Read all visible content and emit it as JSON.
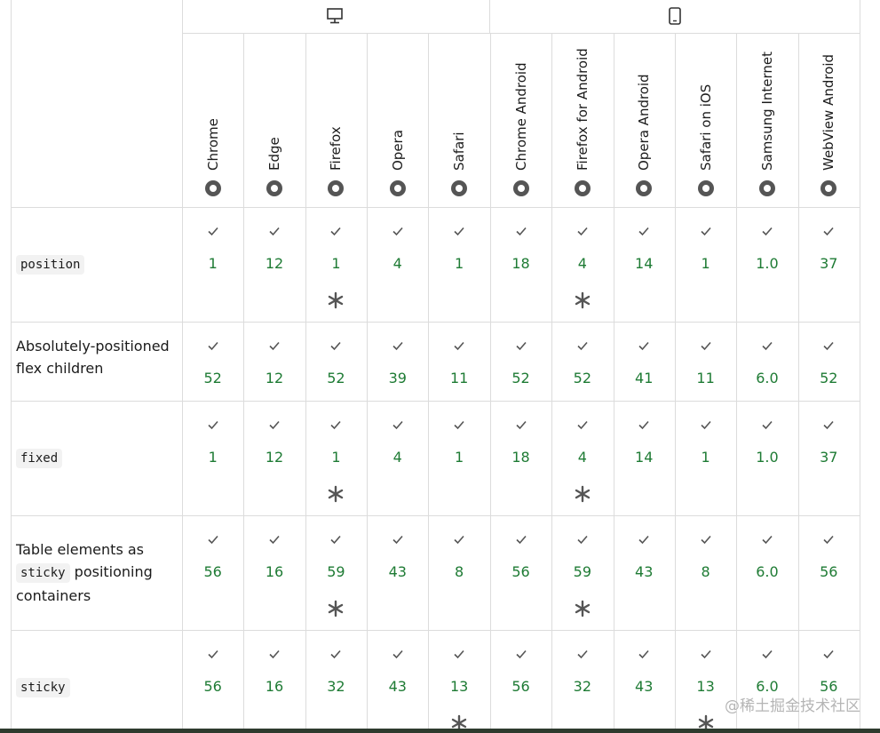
{
  "table": {
    "groups": [
      "desktop",
      "mobile"
    ],
    "browsers": [
      "Chrome",
      "Edge",
      "Firefox",
      "Opera",
      "Safari",
      "Chrome Android",
      "Firefox for Android",
      "Opera Android",
      "Safari on iOS",
      "Samsung Internet",
      "WebView Android"
    ],
    "rows": [
      {
        "label": [
          {
            "text": "position",
            "code": true
          }
        ],
        "versions": [
          "1",
          "12",
          "1",
          "4",
          "1",
          "18",
          "4",
          "14",
          "1",
          "1.0",
          "37"
        ],
        "notes": [
          false,
          false,
          true,
          false,
          false,
          false,
          true,
          false,
          false,
          false,
          false
        ]
      },
      {
        "label": [
          {
            "text": "Absolutely-positioned flex children",
            "code": false
          }
        ],
        "versions": [
          "52",
          "12",
          "52",
          "39",
          "11",
          "52",
          "52",
          "41",
          "11",
          "6.0",
          "52"
        ],
        "notes": [
          false,
          false,
          false,
          false,
          false,
          false,
          false,
          false,
          false,
          false,
          false
        ]
      },
      {
        "label": [
          {
            "text": "fixed",
            "code": true
          }
        ],
        "versions": [
          "1",
          "12",
          "1",
          "4",
          "1",
          "18",
          "4",
          "14",
          "1",
          "1.0",
          "37"
        ],
        "notes": [
          false,
          false,
          true,
          false,
          false,
          false,
          true,
          false,
          false,
          false,
          false
        ]
      },
      {
        "label": [
          {
            "text": "Table elements as ",
            "code": false
          },
          {
            "text": "sticky",
            "code": true
          },
          {
            "text": " positioning containers",
            "code": false
          }
        ],
        "versions": [
          "56",
          "16",
          "59",
          "43",
          "8",
          "56",
          "59",
          "43",
          "8",
          "6.0",
          "56"
        ],
        "notes": [
          false,
          false,
          true,
          false,
          false,
          false,
          true,
          false,
          false,
          false,
          false
        ]
      },
      {
        "label": [
          {
            "text": "sticky",
            "code": true
          }
        ],
        "versions": [
          "56",
          "16",
          "32",
          "43",
          "13",
          "56",
          "32",
          "43",
          "13",
          "6.0",
          "56"
        ],
        "notes": [
          false,
          false,
          false,
          false,
          true,
          false,
          false,
          false,
          true,
          false,
          false
        ]
      }
    ]
  },
  "watermark": "@稀土掘金技术社区"
}
